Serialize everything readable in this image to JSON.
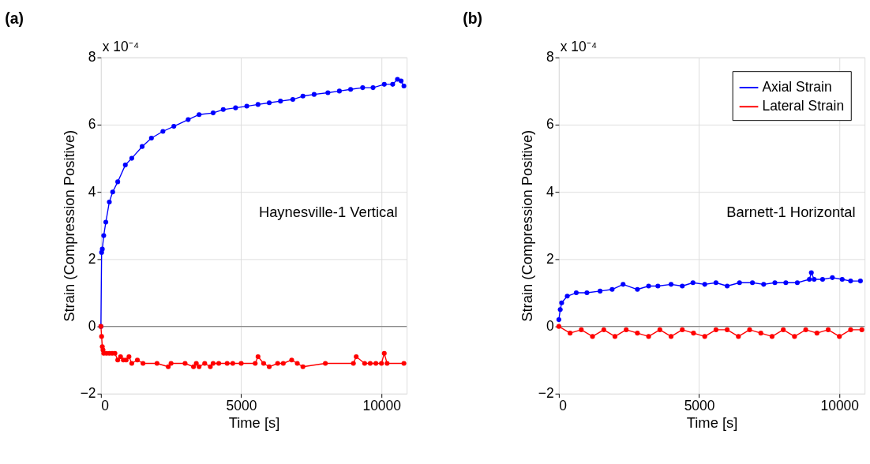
{
  "chart_data": [
    {
      "type": "line",
      "title": "(a)",
      "xlabel": "Time [s]",
      "ylabel": "Strain (Compression Positive)",
      "xlim": [
        0,
        10900
      ],
      "xticks": [
        0,
        5000,
        10000
      ],
      "ylim": [
        -2,
        8
      ],
      "yticks": [
        -2,
        0,
        2,
        4,
        6,
        8
      ],
      "grid": true,
      "marker": "circle",
      "line_style": "solid",
      "legend": false,
      "ref_lines": [
        {
          "axis": "y",
          "value": 0,
          "color": "#888888"
        }
      ],
      "annotations": [
        "x 10⁻⁴",
        "Haynesville-1 Vertical"
      ],
      "series": [
        {
          "color": "#0000ff",
          "x": [
            0,
            25,
            50,
            100,
            175,
            300,
            420,
            600,
            870,
            1100,
            1470,
            1800,
            2210,
            2600,
            3110,
            3500,
            4000,
            4360,
            4800,
            5200,
            5600,
            6000,
            6400,
            6840,
            7200,
            7600,
            8090,
            8500,
            8900,
            9330,
            9700,
            10100,
            10400,
            10570,
            10700,
            10800
          ],
          "values": [
            0,
            2.2,
            2.3,
            2.7,
            3.1,
            3.7,
            4.0,
            4.3,
            4.8,
            5.0,
            5.35,
            5.6,
            5.8,
            5.95,
            6.15,
            6.3,
            6.35,
            6.45,
            6.5,
            6.55,
            6.6,
            6.65,
            6.7,
            6.75,
            6.85,
            6.9,
            6.95,
            7.0,
            7.05,
            7.1,
            7.1,
            7.2,
            7.2,
            7.35,
            7.3,
            7.15
          ]
        },
        {
          "color": "#ff0000",
          "x": [
            0,
            25,
            50,
            75,
            100,
            200,
            300,
            400,
            500,
            600,
            700,
            800,
            900,
            1000,
            1100,
            1300,
            1500,
            2000,
            2400,
            2500,
            3000,
            3300,
            3400,
            3500,
            3700,
            3900,
            4000,
            4200,
            4500,
            4700,
            5000,
            5500,
            5600,
            5800,
            6000,
            6300,
            6500,
            6800,
            7000,
            7200,
            8000,
            9000,
            9100,
            9400,
            9600,
            9800,
            10000,
            10100,
            10200,
            10800
          ],
          "values": [
            0,
            -0.3,
            -0.6,
            -0.7,
            -0.8,
            -0.8,
            -0.8,
            -0.8,
            -0.8,
            -1.0,
            -0.9,
            -1.0,
            -1.0,
            -0.9,
            -1.1,
            -1.0,
            -1.1,
            -1.1,
            -1.2,
            -1.1,
            -1.1,
            -1.2,
            -1.1,
            -1.2,
            -1.1,
            -1.2,
            -1.1,
            -1.1,
            -1.1,
            -1.1,
            -1.1,
            -1.1,
            -0.9,
            -1.1,
            -1.2,
            -1.1,
            -1.1,
            -1.0,
            -1.1,
            -1.2,
            -1.1,
            -1.1,
            -0.9,
            -1.1,
            -1.1,
            -1.1,
            -1.1,
            -0.8,
            -1.1,
            -1.1
          ]
        }
      ]
    },
    {
      "type": "line",
      "title": "(b)",
      "xlabel": "Time [s]",
      "ylabel": "Strain (Compression Positive)",
      "xlim": [
        0,
        10900
      ],
      "xticks": [
        0,
        5000,
        10000
      ],
      "ylim": [
        -2,
        8
      ],
      "yticks": [
        -2,
        0,
        2,
        4,
        6,
        8
      ],
      "grid": true,
      "marker": "circle",
      "line_style": "solid",
      "legend": "top right",
      "ref_lines": [
        {
          "axis": "y",
          "value": 0,
          "color": "#888888"
        }
      ],
      "annotations": [
        "x 10⁻⁴",
        "Barnett-1 Horizontal"
      ],
      "series": [
        {
          "name": "Axial Strain",
          "color": "#0000ff",
          "x": [
            0,
            50,
            100,
            300,
            620,
            1000,
            1470,
            1900,
            2290,
            2800,
            3200,
            3530,
            4000,
            4400,
            4780,
            5200,
            5600,
            6000,
            6440,
            6900,
            7300,
            7700,
            8090,
            8500,
            8930,
            9000,
            9100,
            9400,
            9750,
            10100,
            10400,
            10750
          ],
          "values": [
            0.2,
            0.5,
            0.7,
            0.9,
            1.0,
            1.0,
            1.05,
            1.1,
            1.25,
            1.1,
            1.2,
            1.2,
            1.25,
            1.2,
            1.3,
            1.25,
            1.3,
            1.2,
            1.3,
            1.3,
            1.25,
            1.3,
            1.3,
            1.3,
            1.4,
            1.6,
            1.4,
            1.4,
            1.45,
            1.4,
            1.35,
            1.35
          ]
        },
        {
          "name": "Lateral Strain",
          "color": "#ff0000",
          "x": [
            0,
            400,
            800,
            1200,
            1600,
            2000,
            2400,
            2800,
            3200,
            3600,
            4000,
            4400,
            4800,
            5200,
            5600,
            6000,
            6400,
            6800,
            7200,
            7600,
            8000,
            8400,
            8800,
            9200,
            9600,
            10000,
            10400,
            10800
          ],
          "values": [
            0,
            -0.2,
            -0.1,
            -0.3,
            -0.1,
            -0.3,
            -0.1,
            -0.2,
            -0.3,
            -0.1,
            -0.3,
            -0.1,
            -0.2,
            -0.3,
            -0.1,
            -0.1,
            -0.3,
            -0.1,
            -0.2,
            -0.3,
            -0.1,
            -0.3,
            -0.1,
            -0.2,
            -0.1,
            -0.3,
            -0.1,
            -0.1
          ]
        }
      ]
    }
  ]
}
